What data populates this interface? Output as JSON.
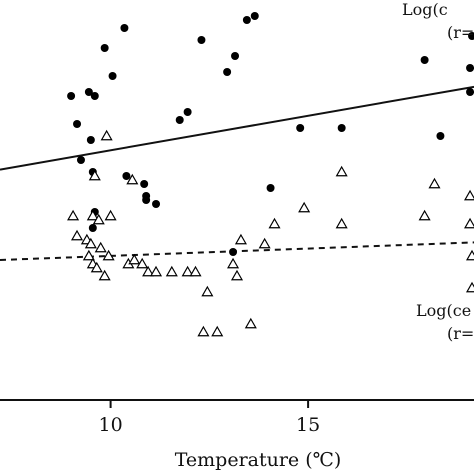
{
  "chart_data": {
    "type": "scatter",
    "title": "",
    "xlabel": "Temperature (℃)",
    "ylabel": "",
    "xlim": [
      7.2,
      19.2
    ],
    "ylim": [
      0,
      100
    ],
    "xticks": [
      10,
      15
    ],
    "grid": false,
    "series": [
      {
        "marker": "filled-circle",
        "points": [
          [
            9.0,
            76
          ],
          [
            9.15,
            69
          ],
          [
            9.25,
            60
          ],
          [
            9.45,
            77
          ],
          [
            9.5,
            65
          ],
          [
            9.55,
            57
          ],
          [
            9.6,
            76
          ],
          [
            9.6,
            47
          ],
          [
            9.85,
            88
          ],
          [
            10.05,
            81
          ],
          [
            10.35,
            93
          ],
          [
            10.4,
            56
          ],
          [
            10.85,
            54
          ],
          [
            10.9,
            51
          ],
          [
            10.9,
            50
          ],
          [
            11.15,
            49
          ],
          [
            11.75,
            70
          ],
          [
            11.95,
            72
          ],
          [
            12.3,
            90
          ],
          [
            12.95,
            82
          ],
          [
            13.15,
            86
          ],
          [
            13.45,
            95
          ],
          [
            13.65,
            96
          ],
          [
            14.05,
            53
          ],
          [
            14.8,
            68
          ],
          [
            15.85,
            68
          ],
          [
            13.1,
            37
          ],
          [
            9.55,
            43
          ],
          [
            17.95,
            85
          ],
          [
            18.35,
            66
          ],
          [
            19.1,
            83
          ],
          [
            19.1,
            77
          ],
          [
            19.15,
            91
          ]
        ]
      },
      {
        "marker": "open-triangle",
        "points": [
          [
            9.05,
            46
          ],
          [
            9.15,
            41
          ],
          [
            9.4,
            40
          ],
          [
            9.45,
            36
          ],
          [
            9.55,
            34
          ],
          [
            9.5,
            39
          ],
          [
            9.55,
            46
          ],
          [
            9.65,
            33
          ],
          [
            9.7,
            45
          ],
          [
            9.75,
            38
          ],
          [
            9.6,
            56
          ],
          [
            9.9,
            66
          ],
          [
            9.85,
            31
          ],
          [
            10.0,
            46
          ],
          [
            9.95,
            36
          ],
          [
            10.45,
            34
          ],
          [
            10.55,
            55
          ],
          [
            10.6,
            35
          ],
          [
            10.8,
            34
          ],
          [
            10.95,
            32
          ],
          [
            11.15,
            32
          ],
          [
            11.55,
            32
          ],
          [
            11.95,
            32
          ],
          [
            12.15,
            32
          ],
          [
            12.35,
            17
          ],
          [
            12.45,
            27
          ],
          [
            12.7,
            17
          ],
          [
            13.1,
            34
          ],
          [
            13.2,
            31
          ],
          [
            13.3,
            40
          ],
          [
            13.55,
            19
          ],
          [
            13.9,
            39
          ],
          [
            14.15,
            44
          ],
          [
            14.9,
            48
          ],
          [
            15.85,
            57
          ],
          [
            15.85,
            44
          ],
          [
            17.95,
            46
          ],
          [
            18.2,
            54
          ],
          [
            19.1,
            51
          ],
          [
            19.1,
            44
          ],
          [
            19.15,
            36
          ],
          [
            19.15,
            28
          ]
        ]
      }
    ],
    "regression_lines": [
      {
        "style": "solid",
        "x": [
          7.2,
          19.2
        ],
        "y": [
          57.6,
          78.3
        ]
      },
      {
        "style": "dashed",
        "x": [
          7.2,
          19.2
        ],
        "y": [
          35.0,
          39.4
        ]
      }
    ],
    "annotations": [
      {
        "text": "Log(c",
        "anchor": "upper-right"
      },
      {
        "text": "(r=",
        "anchor": "upper-right"
      },
      {
        "text": "Log(ce",
        "anchor": "lower-right"
      },
      {
        "text": "(r=",
        "anchor": "lower-right"
      }
    ]
  }
}
